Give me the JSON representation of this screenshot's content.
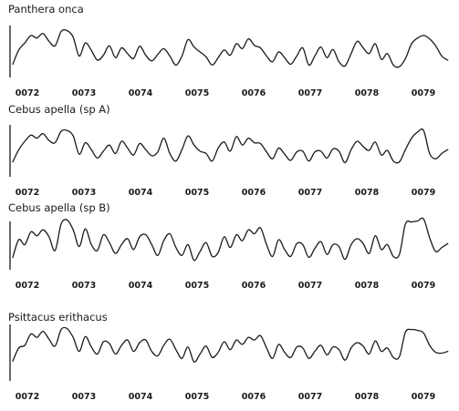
{
  "chart_data": [
    {
      "type": "line",
      "title": "Panthera onca",
      "x_tick_labels": [
        "0072",
        "0073",
        "0074",
        "0075",
        "0076",
        "0077",
        "0078",
        "0079"
      ],
      "xlim": [
        0,
        7.25
      ],
      "ylim": [
        0,
        1
      ],
      "grid": false,
      "x": [
        0.0,
        0.1,
        0.2,
        0.3,
        0.4,
        0.5,
        0.6,
        0.7,
        0.8,
        0.9,
        1.0,
        1.1,
        1.2,
        1.3,
        1.4,
        1.5,
        1.6,
        1.7,
        1.8,
        1.9,
        2.0,
        2.1,
        2.2,
        2.3,
        2.4,
        2.5,
        2.6,
        2.7,
        2.8,
        2.9,
        3.0,
        3.1,
        3.2,
        3.3,
        3.4,
        3.5,
        3.6,
        3.7,
        3.8,
        3.9,
        4.0,
        4.1,
        4.2,
        4.3,
        4.4,
        4.5,
        4.6,
        4.7,
        4.8,
        4.9,
        5.0,
        5.1,
        5.2,
        5.3,
        5.4,
        5.5,
        5.6,
        5.7,
        5.8,
        5.9,
        6.0,
        6.1,
        6.2,
        6.3,
        6.4,
        6.5,
        6.6,
        6.7,
        6.8,
        6.9,
        7.0,
        7.1,
        7.2
      ],
      "y": [
        0.1,
        0.45,
        0.62,
        0.8,
        0.74,
        0.85,
        0.66,
        0.55,
        0.9,
        0.92,
        0.76,
        0.3,
        0.62,
        0.44,
        0.2,
        0.32,
        0.55,
        0.26,
        0.5,
        0.36,
        0.24,
        0.54,
        0.32,
        0.18,
        0.34,
        0.48,
        0.3,
        0.08,
        0.3,
        0.7,
        0.52,
        0.4,
        0.28,
        0.08,
        0.26,
        0.45,
        0.32,
        0.6,
        0.48,
        0.72,
        0.56,
        0.5,
        0.3,
        0.16,
        0.4,
        0.26,
        0.1,
        0.3,
        0.5,
        0.08,
        0.3,
        0.52,
        0.26,
        0.46,
        0.16,
        0.06,
        0.36,
        0.66,
        0.5,
        0.36,
        0.6,
        0.22,
        0.36,
        0.08,
        0.04,
        0.24,
        0.6,
        0.74,
        0.8,
        0.72,
        0.55,
        0.3,
        0.2
      ]
    },
    {
      "type": "line",
      "title": "Cebus apella (sp A)",
      "x_tick_labels": [
        "0072",
        "0073",
        "0074",
        "0075",
        "0076",
        "0077",
        "0078",
        "0079"
      ],
      "xlim": [
        0,
        7.25
      ],
      "ylim": [
        0,
        1
      ],
      "grid": false,
      "x": [
        0.0,
        0.1,
        0.2,
        0.3,
        0.4,
        0.5,
        0.6,
        0.7,
        0.8,
        0.9,
        1.0,
        1.1,
        1.2,
        1.3,
        1.4,
        1.5,
        1.6,
        1.7,
        1.8,
        1.9,
        2.0,
        2.1,
        2.2,
        2.3,
        2.4,
        2.5,
        2.6,
        2.7,
        2.8,
        2.9,
        3.0,
        3.1,
        3.2,
        3.3,
        3.4,
        3.5,
        3.6,
        3.7,
        3.8,
        3.9,
        4.0,
        4.1,
        4.2,
        4.3,
        4.4,
        4.5,
        4.6,
        4.7,
        4.8,
        4.9,
        5.0,
        5.1,
        5.2,
        5.3,
        5.4,
        5.5,
        5.6,
        5.7,
        5.8,
        5.9,
        6.0,
        6.1,
        6.2,
        6.3,
        6.4,
        6.5,
        6.6,
        6.7,
        6.8,
        6.9,
        7.0,
        7.1,
        7.2
      ],
      "y": [
        0.08,
        0.4,
        0.62,
        0.78,
        0.7,
        0.82,
        0.64,
        0.58,
        0.88,
        0.9,
        0.76,
        0.28,
        0.58,
        0.4,
        0.18,
        0.36,
        0.52,
        0.3,
        0.62,
        0.44,
        0.26,
        0.56,
        0.4,
        0.24,
        0.34,
        0.7,
        0.3,
        0.1,
        0.4,
        0.76,
        0.52,
        0.36,
        0.3,
        0.1,
        0.44,
        0.6,
        0.36,
        0.74,
        0.52,
        0.7,
        0.58,
        0.56,
        0.34,
        0.16,
        0.44,
        0.28,
        0.12,
        0.34,
        0.36,
        0.1,
        0.34,
        0.36,
        0.18,
        0.42,
        0.36,
        0.06,
        0.4,
        0.62,
        0.48,
        0.38,
        0.6,
        0.26,
        0.38,
        0.1,
        0.08,
        0.4,
        0.7,
        0.86,
        0.9,
        0.3,
        0.16,
        0.3,
        0.4
      ]
    },
    {
      "type": "line",
      "title": "Cebus apella (sp B)",
      "x_tick_labels": [
        "0072",
        "0073",
        "0074",
        "0075",
        "0076",
        "0077",
        "0078",
        "0079"
      ],
      "xlim": [
        0,
        7.25
      ],
      "ylim": [
        0,
        1
      ],
      "grid": false,
      "x": [
        0.0,
        0.1,
        0.2,
        0.3,
        0.4,
        0.5,
        0.6,
        0.7,
        0.8,
        0.9,
        1.0,
        1.1,
        1.2,
        1.3,
        1.4,
        1.5,
        1.6,
        1.7,
        1.8,
        1.9,
        2.0,
        2.1,
        2.2,
        2.3,
        2.4,
        2.5,
        2.6,
        2.7,
        2.8,
        2.9,
        3.0,
        3.1,
        3.2,
        3.3,
        3.4,
        3.5,
        3.6,
        3.7,
        3.8,
        3.9,
        4.0,
        4.1,
        4.2,
        4.3,
        4.4,
        4.5,
        4.6,
        4.7,
        4.8,
        4.9,
        5.0,
        5.1,
        5.2,
        5.3,
        5.4,
        5.5,
        5.6,
        5.7,
        5.8,
        5.9,
        6.0,
        6.1,
        6.2,
        6.3,
        6.4,
        6.5,
        6.6,
        6.7,
        6.8,
        6.9,
        7.0,
        7.1,
        7.2
      ],
      "y": [
        0.14,
        0.5,
        0.4,
        0.66,
        0.58,
        0.7,
        0.56,
        0.28,
        0.82,
        0.9,
        0.7,
        0.36,
        0.72,
        0.4,
        0.28,
        0.6,
        0.44,
        0.22,
        0.4,
        0.52,
        0.3,
        0.56,
        0.6,
        0.4,
        0.18,
        0.48,
        0.62,
        0.34,
        0.18,
        0.4,
        0.08,
        0.26,
        0.44,
        0.16,
        0.24,
        0.56,
        0.34,
        0.6,
        0.48,
        0.7,
        0.62,
        0.74,
        0.4,
        0.16,
        0.5,
        0.3,
        0.16,
        0.42,
        0.4,
        0.14,
        0.32,
        0.46,
        0.2,
        0.4,
        0.36,
        0.1,
        0.4,
        0.52,
        0.42,
        0.22,
        0.58,
        0.3,
        0.4,
        0.16,
        0.2,
        0.82,
        0.86,
        0.88,
        0.92,
        0.54,
        0.26,
        0.34,
        0.42
      ]
    },
    {
      "type": "line",
      "title": "Psittacus erithacus",
      "x_tick_labels": [
        "0072",
        "0073",
        "0074",
        "0075",
        "0076",
        "0077",
        "0078",
        "0079"
      ],
      "xlim": [
        0,
        7.25
      ],
      "ylim": [
        0,
        1
      ],
      "grid": false,
      "x": [
        0.0,
        0.1,
        0.2,
        0.3,
        0.4,
        0.5,
        0.6,
        0.7,
        0.8,
        0.9,
        1.0,
        1.1,
        1.2,
        1.3,
        1.4,
        1.5,
        1.6,
        1.7,
        1.8,
        1.9,
        2.0,
        2.1,
        2.2,
        2.3,
        2.4,
        2.5,
        2.6,
        2.7,
        2.8,
        2.9,
        3.0,
        3.1,
        3.2,
        3.3,
        3.4,
        3.5,
        3.6,
        3.7,
        3.8,
        3.9,
        4.0,
        4.1,
        4.2,
        4.3,
        4.4,
        4.5,
        4.6,
        4.7,
        4.8,
        4.9,
        5.0,
        5.1,
        5.2,
        5.3,
        5.4,
        5.5,
        5.6,
        5.7,
        5.8,
        5.9,
        6.0,
        6.1,
        6.2,
        6.3,
        6.4,
        6.5,
        6.6,
        6.7,
        6.8,
        6.9,
        7.0,
        7.1,
        7.2
      ],
      "y": [
        0.08,
        0.38,
        0.44,
        0.7,
        0.62,
        0.76,
        0.58,
        0.42,
        0.8,
        0.82,
        0.62,
        0.3,
        0.64,
        0.4,
        0.24,
        0.52,
        0.48,
        0.24,
        0.44,
        0.56,
        0.3,
        0.5,
        0.56,
        0.3,
        0.2,
        0.44,
        0.58,
        0.34,
        0.14,
        0.4,
        0.06,
        0.24,
        0.42,
        0.16,
        0.28,
        0.52,
        0.34,
        0.56,
        0.46,
        0.62,
        0.56,
        0.66,
        0.38,
        0.14,
        0.46,
        0.28,
        0.16,
        0.4,
        0.38,
        0.14,
        0.3,
        0.44,
        0.22,
        0.4,
        0.34,
        0.1,
        0.38,
        0.5,
        0.42,
        0.24,
        0.54,
        0.3,
        0.38,
        0.16,
        0.18,
        0.74,
        0.8,
        0.78,
        0.72,
        0.44,
        0.28,
        0.26,
        0.3
      ]
    }
  ]
}
